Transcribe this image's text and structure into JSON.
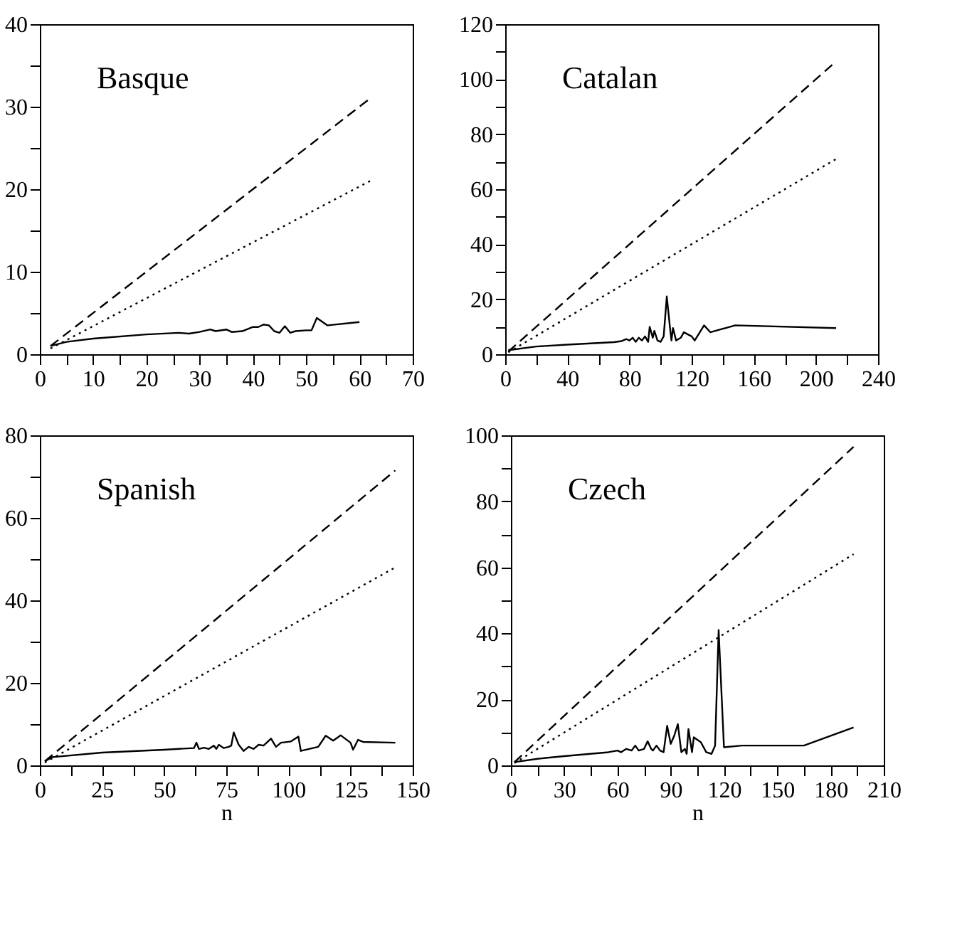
{
  "chart_data": [
    {
      "type": "line",
      "title": "Basque",
      "xlim": [
        0,
        70
      ],
      "ylim": [
        0,
        40
      ],
      "grid": false,
      "legend": false,
      "xticks": [
        0,
        {
          "value": 5,
          "label": null
        },
        10,
        {
          "value": 15,
          "label": null
        },
        20,
        {
          "value": 25,
          "label": null
        },
        30,
        {
          "value": 35,
          "label": null
        },
        40,
        {
          "value": 45,
          "label": null
        },
        50,
        {
          "value": 55,
          "label": null
        },
        60,
        {
          "value": 65,
          "label": null
        },
        70
      ],
      "yticks": [
        0,
        {
          "value": 5,
          "label": null
        },
        10,
        {
          "value": 15,
          "label": null
        },
        20,
        {
          "value": 25,
          "label": null
        },
        30,
        {
          "value": 35,
          "label": null
        },
        40
      ],
      "series": [
        {
          "color": "#000000",
          "line_style": "dashed",
          "x": [
            2,
            62
          ],
          "values": [
            1,
            31
          ]
        },
        {
          "color": "#000000",
          "line_style": "dotted",
          "x": [
            2,
            62
          ],
          "values": [
            0.7,
            21
          ]
        },
        {
          "color": "#000000",
          "line_style": "solid",
          "x": [
            2,
            5,
            10,
            20,
            26,
            28,
            30,
            32,
            33,
            35,
            36,
            38,
            40,
            41,
            42,
            43,
            44,
            45,
            46,
            47,
            48,
            50,
            51,
            52,
            54,
            60
          ],
          "values": [
            1,
            1.5,
            1.9,
            2.4,
            2.6,
            2.5,
            2.7,
            3.0,
            2.8,
            3.0,
            2.7,
            2.8,
            3.3,
            3.3,
            3.6,
            3.5,
            2.8,
            2.6,
            3.4,
            2.6,
            2.8,
            2.9,
            2.9,
            4.4,
            3.5,
            3.9
          ]
        }
      ]
    },
    {
      "type": "line",
      "title": "Catalan",
      "xlim": [
        0,
        240
      ],
      "ylim": [
        0,
        120
      ],
      "grid": false,
      "legend": false,
      "xticks": [
        0,
        {
          "value": 20,
          "label": null
        },
        40,
        {
          "value": 60,
          "label": null
        },
        80,
        {
          "value": 100,
          "label": null
        },
        120,
        {
          "value": 140,
          "label": null
        },
        160,
        {
          "value": 180,
          "label": null
        },
        200,
        {
          "value": 220,
          "label": null
        },
        240
      ],
      "yticks": [
        0,
        {
          "value": 10,
          "label": null
        },
        20,
        {
          "value": 30,
          "label": null
        },
        40,
        {
          "value": 50,
          "label": null
        },
        60,
        {
          "value": 70,
          "label": null
        },
        80,
        {
          "value": 90,
          "label": null
        },
        100,
        {
          "value": 110,
          "label": null
        },
        120
      ],
      "series": [
        {
          "color": "#000000",
          "line_style": "dashed",
          "x": [
            2,
            213
          ],
          "values": [
            1,
            106.5
          ]
        },
        {
          "color": "#000000",
          "line_style": "dotted",
          "x": [
            2,
            213
          ],
          "values": [
            0.7,
            71
          ]
        },
        {
          "color": "#000000",
          "line_style": "solid",
          "x": [
            2,
            20,
            40,
            70,
            75,
            78,
            80,
            82,
            84,
            86,
            88,
            90,
            92,
            93,
            95,
            96,
            98,
            100,
            102,
            104,
            106,
            107,
            108,
            110,
            113,
            115,
            120,
            122,
            128,
            132,
            148,
            213
          ],
          "values": [
            1.5,
            2.8,
            3.5,
            4.4,
            4.8,
            5.5,
            5,
            6,
            4.5,
            6,
            5,
            6.5,
            4.5,
            10,
            6,
            8.5,
            5,
            4.5,
            6.5,
            21,
            10,
            5,
            9.5,
            5,
            6,
            8,
            6.5,
            5,
            10.5,
            8,
            10.5,
            9.5
          ]
        }
      ]
    },
    {
      "type": "line",
      "title": "Spanish",
      "xlabel": "n",
      "xlim": [
        0,
        150
      ],
      "ylim": [
        0,
        80
      ],
      "grid": false,
      "legend": false,
      "xticks": [
        0,
        {
          "value": 12.5,
          "label": null
        },
        25,
        {
          "value": 37.5,
          "label": null
        },
        50,
        {
          "value": 62.5,
          "label": null
        },
        75,
        {
          "value": 87.5,
          "label": null
        },
        100,
        {
          "value": 112.5,
          "label": null
        },
        125,
        {
          "value": 137.5,
          "label": null
        },
        150
      ],
      "yticks": [
        0,
        {
          "value": 10,
          "label": null
        },
        20,
        {
          "value": 30,
          "label": null
        },
        40,
        {
          "value": 50,
          "label": null
        },
        60,
        {
          "value": 70,
          "label": null
        },
        80
      ],
      "series": [
        {
          "color": "#000000",
          "line_style": "dashed",
          "x": [
            2,
            143
          ],
          "values": [
            1,
            71.5
          ]
        },
        {
          "color": "#000000",
          "line_style": "dotted",
          "x": [
            2,
            143
          ],
          "values": [
            0.7,
            48
          ]
        },
        {
          "color": "#000000",
          "line_style": "solid",
          "x": [
            2,
            5,
            25,
            50,
            62,
            63,
            64,
            66,
            68,
            70,
            71,
            72,
            74,
            76,
            77,
            78,
            80,
            82,
            84,
            86,
            88,
            90,
            93,
            95,
            97,
            101,
            104,
            105,
            112,
            115,
            118,
            121,
            125,
            126,
            128,
            130,
            143
          ],
          "values": [
            1,
            2,
            3.1,
            3.8,
            4.2,
            5.5,
            4,
            4.3,
            4,
            4.8,
            4,
            5,
            4.2,
            4.5,
            4.8,
            8,
            5,
            3.5,
            4.5,
            4,
            5,
            4.8,
            6.5,
            4.5,
            5.5,
            5.8,
            7,
            3.5,
            4.5,
            7.2,
            6,
            7.3,
            5.5,
            3.8,
            6.2,
            5.7,
            5.5
          ]
        }
      ]
    },
    {
      "type": "line",
      "title": "Czech",
      "xlabel": "n",
      "xlim": [
        0,
        210
      ],
      "ylim": [
        0,
        100
      ],
      "grid": false,
      "legend": false,
      "xticks": [
        0,
        {
          "value": 15,
          "label": null
        },
        30,
        {
          "value": 45,
          "label": null
        },
        60,
        {
          "value": 75,
          "label": null
        },
        90,
        {
          "value": 105,
          "label": null
        },
        120,
        {
          "value": 135,
          "label": null
        },
        150,
        {
          "value": 165,
          "label": null
        },
        180,
        {
          "value": 195,
          "label": null
        },
        210
      ],
      "yticks": [
        0,
        {
          "value": 10,
          "label": null
        },
        20,
        {
          "value": 30,
          "label": null
        },
        40,
        {
          "value": 50,
          "label": null
        },
        60,
        {
          "value": 70,
          "label": null
        },
        80,
        {
          "value": 90,
          "label": null
        },
        100
      ],
      "series": [
        {
          "color": "#000000",
          "line_style": "dashed",
          "x": [
            2,
            193
          ],
          "values": [
            1,
            96.5
          ]
        },
        {
          "color": "#000000",
          "line_style": "dotted",
          "x": [
            2,
            193
          ],
          "values": [
            0.7,
            64
          ]
        },
        {
          "color": "#000000",
          "line_style": "solid",
          "x": [
            2,
            15,
            30,
            55,
            60,
            62,
            65,
            68,
            70,
            72,
            75,
            77,
            79,
            80,
            82,
            84,
            86,
            88,
            90,
            92,
            94,
            96,
            98,
            99,
            100,
            102,
            103,
            107,
            110,
            113,
            115,
            117,
            120,
            130,
            165,
            193
          ],
          "values": [
            1,
            2,
            2.8,
            4,
            4.5,
            4.0,
            5,
            4.5,
            6,
            4.5,
            5,
            7.3,
            5,
            4.5,
            6,
            4.5,
            4,
            12,
            6.5,
            9,
            12.5,
            4,
            5,
            3.5,
            11,
            4,
            8.5,
            7,
            4,
            3.5,
            6,
            41,
            5.5,
            6,
            6,
            11.5
          ]
        }
      ]
    }
  ]
}
